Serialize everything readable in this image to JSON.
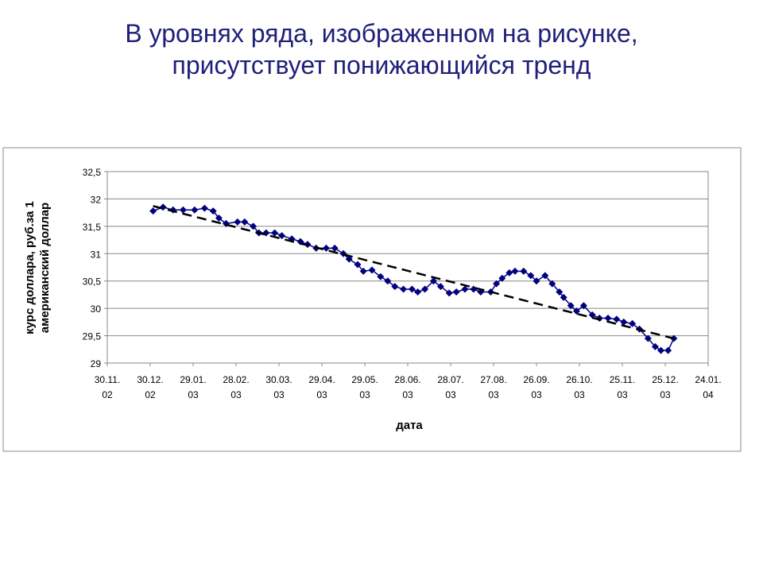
{
  "chart_data": {
    "type": "line",
    "title": "В уровнях ряда, изображенном на рисунке,\nприсутствует понижающийся тренд",
    "x_label": "дата",
    "y_label": "курс доллара, руб.за 1\nамериканский доллар",
    "x": [
      "2003-01-01",
      "2003-01-08",
      "2003-01-15",
      "2003-01-22",
      "2003-01-30",
      "2003-02-06",
      "2003-02-12",
      "2003-02-16",
      "2003-02-21",
      "2003-03-01",
      "2003-03-06",
      "2003-03-12",
      "2003-03-16",
      "2003-03-21",
      "2003-03-27",
      "2003-04-01",
      "2003-04-08",
      "2003-04-14",
      "2003-04-19",
      "2003-04-25",
      "2003-05-02",
      "2003-05-08",
      "2003-05-14",
      "2003-05-18",
      "2003-05-24",
      "2003-05-28",
      "2003-06-03",
      "2003-06-09",
      "2003-06-14",
      "2003-06-19",
      "2003-06-25",
      "2003-07-01",
      "2003-07-05",
      "2003-07-10",
      "2003-07-16",
      "2003-07-21",
      "2003-07-27",
      "2003-08-01",
      "2003-08-07",
      "2003-08-13",
      "2003-08-18",
      "2003-08-25",
      "2003-08-29",
      "2003-09-02",
      "2003-09-07",
      "2003-09-11",
      "2003-09-17",
      "2003-09-22",
      "2003-09-26",
      "2003-10-02",
      "2003-10-07",
      "2003-10-12",
      "2003-10-15",
      "2003-10-20",
      "2003-10-24",
      "2003-10-29",
      "2003-11-04",
      "2003-11-09",
      "2003-11-15",
      "2003-11-21",
      "2003-11-26",
      "2003-12-02",
      "2003-12-07",
      "2003-12-13",
      "2003-12-18",
      "2003-12-22",
      "2003-12-27",
      "2003-12-31"
    ],
    "series": [
      {
        "color": "#000080",
        "marker": "diamond",
        "values": [
          31.78,
          31.85,
          31.8,
          31.8,
          31.8,
          31.83,
          31.78,
          31.65,
          31.55,
          31.58,
          31.58,
          31.5,
          31.38,
          31.38,
          31.38,
          31.33,
          31.27,
          31.22,
          31.17,
          31.1,
          31.1,
          31.1,
          31.0,
          30.9,
          30.8,
          30.68,
          30.7,
          30.58,
          30.5,
          30.4,
          30.35,
          30.35,
          30.3,
          30.35,
          30.5,
          30.4,
          30.28,
          30.3,
          30.35,
          30.35,
          30.3,
          30.3,
          30.45,
          30.55,
          30.65,
          30.68,
          30.68,
          30.6,
          30.5,
          30.6,
          30.45,
          30.3,
          30.2,
          30.05,
          29.95,
          30.05,
          29.88,
          29.82,
          29.82,
          29.8,
          29.75,
          29.72,
          29.62,
          29.45,
          29.3,
          29.23,
          29.23,
          29.45
        ]
      },
      {
        "color": "#000000",
        "dash": true,
        "x": [
          "2003-01-01",
          "2003-12-31"
        ],
        "values": [
          31.87,
          29.45
        ]
      }
    ],
    "xlim": [
      "2002-11-30",
      "2004-01-24"
    ],
    "xticks": [
      {
        "value": "2002-11-30",
        "label": "30.11.\n02"
      },
      {
        "value": "2002-12-30",
        "label": "30.12.\n02"
      },
      {
        "value": "2003-01-29",
        "label": "29.01.\n03"
      },
      {
        "value": "2003-02-28",
        "label": "28.02.\n03"
      },
      {
        "value": "2003-03-30",
        "label": "30.03.\n03"
      },
      {
        "value": "2003-04-29",
        "label": "29.04.\n03"
      },
      {
        "value": "2003-05-29",
        "label": "29.05.\n03"
      },
      {
        "value": "2003-06-28",
        "label": "28.06.\n03"
      },
      {
        "value": "2003-07-28",
        "label": "28.07.\n03"
      },
      {
        "value": "2003-08-27",
        "label": "27.08.\n03"
      },
      {
        "value": "2003-09-26",
        "label": "26.09.\n03"
      },
      {
        "value": "2003-10-26",
        "label": "26.10.\n03"
      },
      {
        "value": "2003-11-25",
        "label": "25.11.\n03"
      },
      {
        "value": "2003-12-25",
        "label": "25.12.\n03"
      },
      {
        "value": "2004-01-24",
        "label": "24.01.\n04"
      }
    ],
    "ylim": [
      29,
      32.5
    ],
    "yticks": [
      29,
      {
        "value": 29.5,
        "label": "29,5"
      },
      30,
      {
        "value": 30.5,
        "label": "30,5"
      },
      31,
      {
        "value": 31.5,
        "label": "31,5"
      },
      32,
      {
        "value": 32.5,
        "label": "32,5"
      }
    ],
    "grid": true
  }
}
